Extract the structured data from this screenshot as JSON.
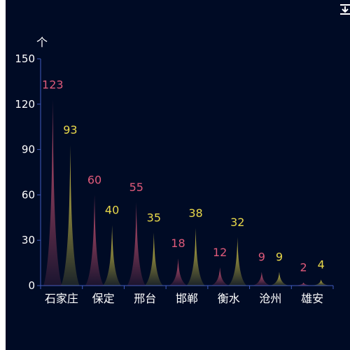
{
  "chart_data": {
    "type": "bar",
    "bar_shape": "pictorial-spike",
    "categories": [
      "石家庄",
      "保定",
      "邢台",
      "邯郸",
      "衡水",
      "沧州",
      "雄安"
    ],
    "series": [
      {
        "values": [
          123,
          60,
          55,
          18,
          12,
          9,
          2
        ],
        "color": "#e05a7a"
      },
      {
        "values": [
          93,
          40,
          35,
          38,
          32,
          9,
          4
        ],
        "color": "#e8d84a"
      }
    ],
    "ylabel": "个",
    "ylim": [
      0,
      150
    ],
    "yticks": [
      0,
      30,
      60,
      90,
      120,
      150
    ],
    "grid": false,
    "legend": "none"
  },
  "colors": {
    "background": "#000b25",
    "axis": "#3f5bbf",
    "text": "#ffffff"
  },
  "toolbox": {
    "download_icon": "download-icon"
  }
}
